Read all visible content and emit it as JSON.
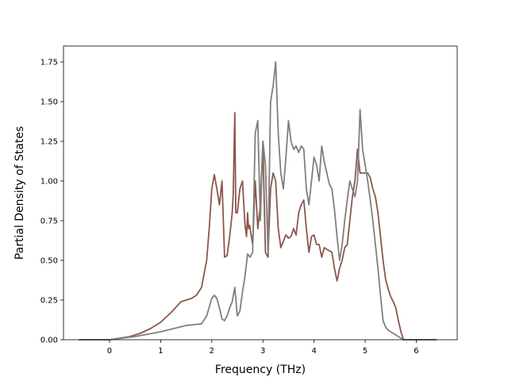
{
  "chart_data": {
    "type": "line",
    "title": "",
    "xlabel": "Frequency (THz)",
    "ylabel": "Partial Density of States",
    "xlim": [
      -0.9,
      6.8
    ],
    "ylim": [
      0,
      1.85
    ],
    "xticks": [
      0,
      1,
      2,
      3,
      4,
      5,
      6
    ],
    "xtick_labels": [
      "0",
      "1",
      "2",
      "3",
      "4",
      "5",
      "6"
    ],
    "yticks": [
      0,
      0.25,
      0.5,
      0.75,
      1.0,
      1.25,
      1.5,
      1.75
    ],
    "ytick_labels": [
      "0.00",
      "0.25",
      "0.50",
      "0.75",
      "1.00",
      "1.25",
      "1.50",
      "1.75"
    ],
    "grid": false,
    "legend": "none",
    "series": [
      {
        "color": "#8c564b",
        "x": [
          -0.6,
          0.0,
          0.2,
          0.4,
          0.6,
          0.8,
          1.0,
          1.2,
          1.4,
          1.5,
          1.6,
          1.7,
          1.8,
          1.9,
          1.95,
          2.0,
          2.05,
          2.1,
          2.15,
          2.2,
          2.25,
          2.3,
          2.35,
          2.4,
          2.42,
          2.45,
          2.47,
          2.5,
          2.55,
          2.6,
          2.65,
          2.68,
          2.7,
          2.72,
          2.74,
          2.76,
          2.8,
          2.85,
          2.9,
          2.95,
          3.0,
          3.02,
          3.05,
          3.1,
          3.12,
          3.15,
          3.2,
          3.25,
          3.3,
          3.35,
          3.4,
          3.45,
          3.5,
          3.55,
          3.6,
          3.65,
          3.7,
          3.75,
          3.8,
          3.85,
          3.9,
          3.95,
          4.0,
          4.05,
          4.1,
          4.15,
          4.2,
          4.25,
          4.3,
          4.35,
          4.4,
          4.45,
          4.5,
          4.55,
          4.6,
          4.65,
          4.7,
          4.75,
          4.8,
          4.85,
          4.9,
          4.95,
          5.0,
          5.05,
          5.1,
          5.15,
          5.2,
          5.25,
          5.3,
          5.35,
          5.4,
          5.45,
          5.5,
          5.55,
          5.6,
          5.65,
          5.7,
          5.75,
          5.8,
          5.85,
          6.0,
          6.4
        ],
        "y": [
          0,
          0,
          0.01,
          0.02,
          0.04,
          0.07,
          0.11,
          0.17,
          0.24,
          0.25,
          0.26,
          0.28,
          0.33,
          0.5,
          0.7,
          0.95,
          1.04,
          0.95,
          0.85,
          1.0,
          0.52,
          0.53,
          0.65,
          0.8,
          0.92,
          1.43,
          0.8,
          0.8,
          0.95,
          1.0,
          0.72,
          0.65,
          0.8,
          0.7,
          0.72,
          0.68,
          0.6,
          1.0,
          0.7,
          0.85,
          1.25,
          0.95,
          0.55,
          0.52,
          0.7,
          0.95,
          1.05,
          1.0,
          0.7,
          0.58,
          0.62,
          0.66,
          0.64,
          0.65,
          0.7,
          0.66,
          0.8,
          0.85,
          0.88,
          0.7,
          0.55,
          0.65,
          0.66,
          0.6,
          0.6,
          0.52,
          0.58,
          0.57,
          0.56,
          0.55,
          0.45,
          0.37,
          0.45,
          0.5,
          0.58,
          0.6,
          0.75,
          0.9,
          1.0,
          1.2,
          1.05,
          1.05,
          1.05,
          1.05,
          1.02,
          0.95,
          0.9,
          0.8,
          0.65,
          0.5,
          0.38,
          0.32,
          0.27,
          0.24,
          0.2,
          0.12,
          0.05,
          0.0,
          0.0,
          0.0,
          0.0,
          0.0
        ]
      },
      {
        "color": "#7f7f7f",
        "x": [
          -0.6,
          0.0,
          0.5,
          1.0,
          1.5,
          1.8,
          1.9,
          2.0,
          2.05,
          2.1,
          2.15,
          2.2,
          2.25,
          2.3,
          2.35,
          2.4,
          2.45,
          2.5,
          2.55,
          2.6,
          2.65,
          2.7,
          2.75,
          2.8,
          2.85,
          2.9,
          2.95,
          3.0,
          3.05,
          3.1,
          3.15,
          3.2,
          3.25,
          3.3,
          3.35,
          3.4,
          3.45,
          3.5,
          3.55,
          3.6,
          3.65,
          3.7,
          3.75,
          3.8,
          3.85,
          3.9,
          3.95,
          4.0,
          4.05,
          4.1,
          4.15,
          4.2,
          4.25,
          4.3,
          4.35,
          4.4,
          4.45,
          4.5,
          4.55,
          4.6,
          4.65,
          4.7,
          4.75,
          4.8,
          4.85,
          4.9,
          4.95,
          5.0,
          5.05,
          5.1,
          5.15,
          5.2,
          5.25,
          5.3,
          5.35,
          5.4,
          5.45,
          5.5,
          5.55,
          5.6,
          5.65,
          5.7,
          5.75,
          5.8,
          5.85,
          6.0,
          6.4
        ],
        "y": [
          0,
          0,
          0.02,
          0.05,
          0.09,
          0.1,
          0.15,
          0.26,
          0.28,
          0.26,
          0.2,
          0.13,
          0.12,
          0.15,
          0.2,
          0.24,
          0.33,
          0.15,
          0.18,
          0.3,
          0.4,
          0.54,
          0.52,
          0.55,
          1.3,
          1.38,
          0.75,
          1.25,
          1.1,
          0.55,
          1.5,
          1.6,
          1.75,
          1.3,
          1.05,
          0.95,
          1.15,
          1.38,
          1.25,
          1.2,
          1.22,
          1.18,
          1.22,
          1.2,
          0.95,
          0.85,
          1.0,
          1.15,
          1.1,
          1.0,
          1.22,
          1.12,
          1.05,
          0.98,
          0.95,
          0.82,
          0.65,
          0.5,
          0.6,
          0.75,
          0.88,
          1.0,
          0.95,
          0.9,
          1.0,
          1.45,
          1.2,
          1.1,
          1.0,
          0.88,
          0.75,
          0.6,
          0.45,
          0.28,
          0.12,
          0.08,
          0.06,
          0.05,
          0.04,
          0.03,
          0.02,
          0.01,
          0.0,
          0.0,
          0.0,
          0.0,
          0.0
        ]
      }
    ]
  }
}
